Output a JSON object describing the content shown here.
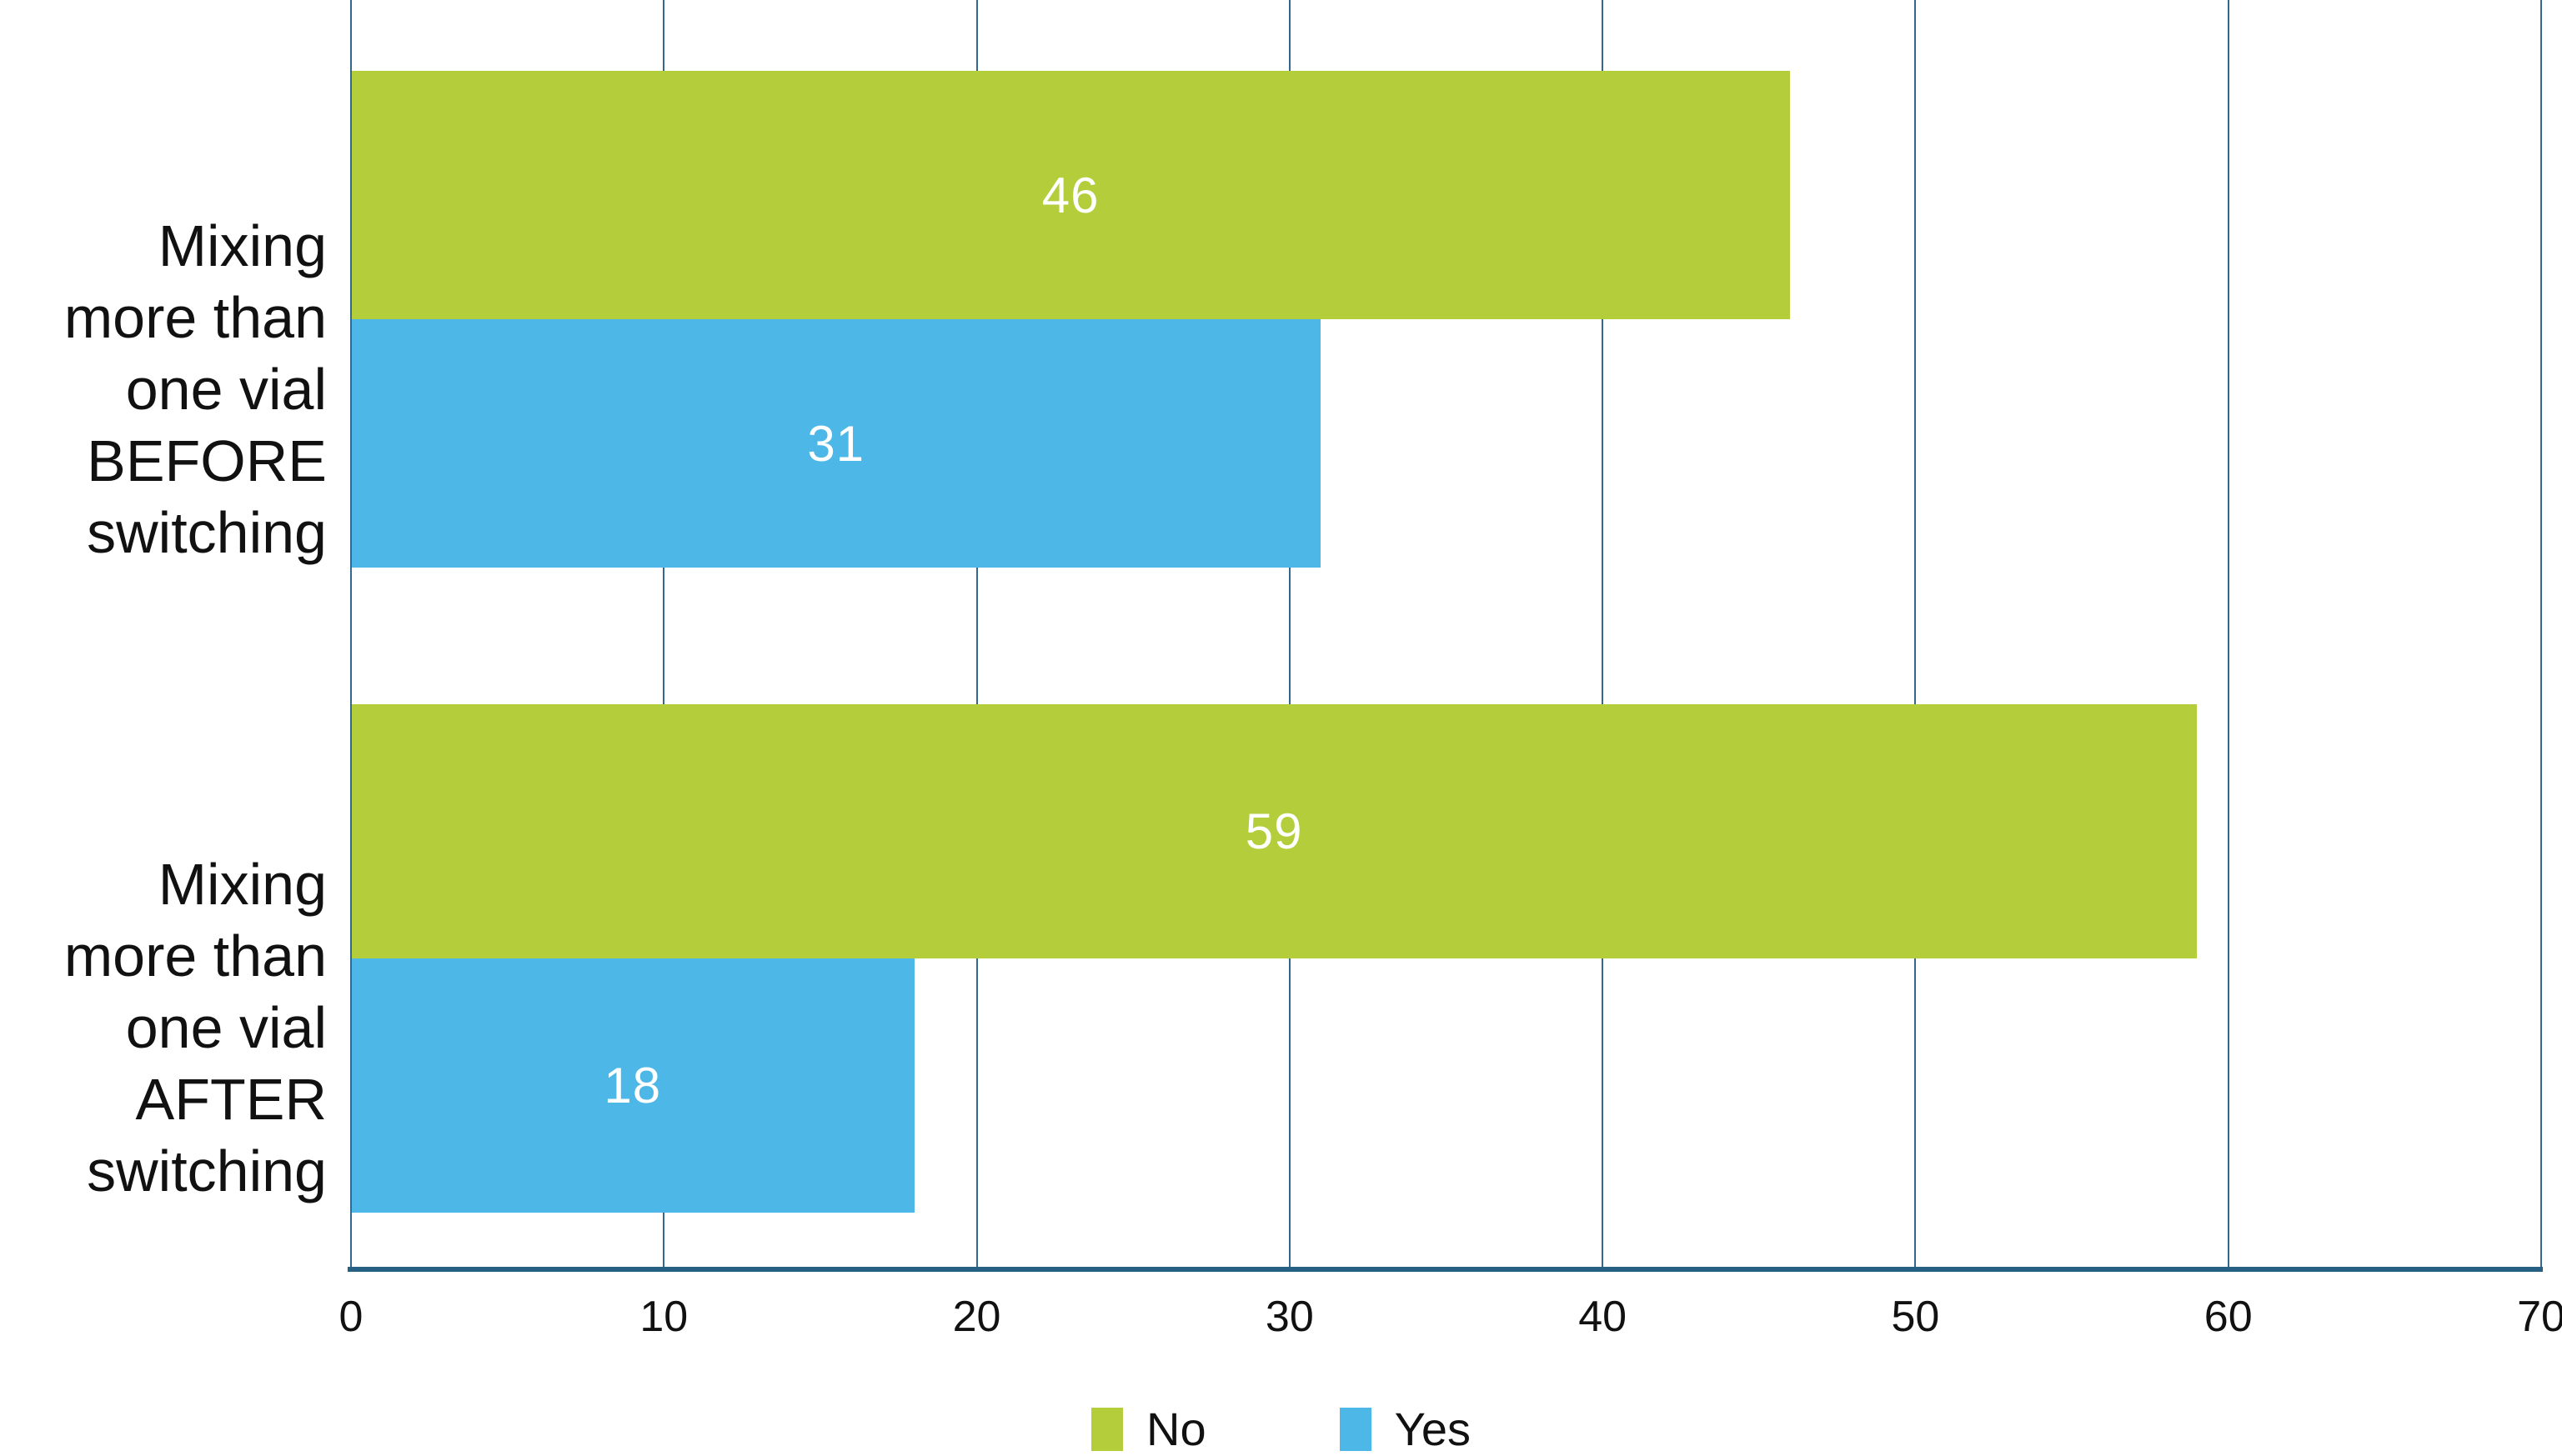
{
  "chart_data": {
    "type": "bar",
    "orientation": "horizontal",
    "title": "",
    "xlabel": "",
    "ylabel": "",
    "categories": [
      "Mixing more than one vial BEFORE switching",
      "Mixing more than one vial AFTER switching"
    ],
    "category_lines": [
      [
        "Mixing",
        "more than",
        "one vial",
        "BEFORE",
        "switching"
      ],
      [
        "Mixing",
        "more than",
        "one vial",
        "AFTER",
        "switching"
      ]
    ],
    "series": [
      {
        "name": "No",
        "color": "#b4ce3b",
        "values": [
          46,
          59
        ]
      },
      {
        "name": "Yes",
        "color": "#4db7e8",
        "values": [
          31,
          18
        ]
      }
    ],
    "xlim": [
      0,
      70
    ],
    "x_ticks": [
      0,
      10,
      20,
      30,
      40,
      50,
      60,
      70
    ],
    "grid": "vertical",
    "legend_position": "bottom",
    "value_labels": "inside-center",
    "colors": {
      "grid_line": "#34688d",
      "axis_line": "#266184",
      "value_label_text": "#ffffff",
      "tick_label_text": "#111111",
      "category_label_text": "#111111",
      "legend_text": "#111111",
      "background": "#ffffff"
    }
  }
}
